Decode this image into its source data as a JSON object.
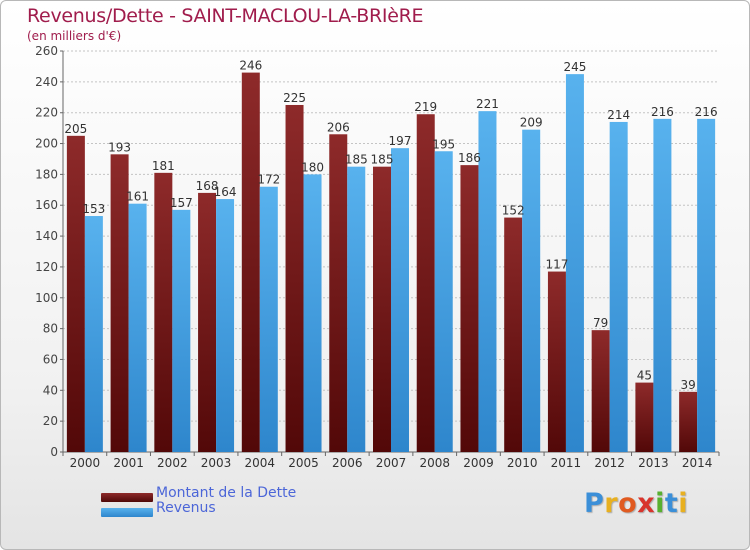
{
  "chart_data": {
    "type": "bar",
    "title": "Revenus/Dette - SAINT-MACLOU-LA-BRIèRE",
    "subtitle": "(en milliers d'€)",
    "categories": [
      "2000",
      "2001",
      "2002",
      "2003",
      "2004",
      "2005",
      "2006",
      "2007",
      "2008",
      "2009",
      "2010",
      "2011",
      "2012",
      "2013",
      "2014"
    ],
    "series": [
      {
        "name": "Montant de la Dette",
        "color": "#6e1414",
        "values": [
          205,
          193,
          181,
          168,
          246,
          225,
          206,
          185,
          219,
          186,
          152,
          117,
          79,
          45,
          39
        ]
      },
      {
        "name": "Revenus",
        "color": "#3f9ee0",
        "values": [
          153,
          161,
          157,
          164,
          172,
          180,
          185,
          197,
          195,
          221,
          209,
          245,
          214,
          216,
          216
        ]
      }
    ],
    "yticks": [
      0,
      20,
      40,
      60,
      80,
      100,
      120,
      140,
      160,
      180,
      200,
      220,
      240,
      260
    ],
    "ylim": [
      0,
      260
    ],
    "grid": true,
    "xlabel": "",
    "ylabel": "",
    "legend_position": "bottom-left"
  },
  "legend": {
    "dette_label": "Montant de la Dette",
    "revenus_label": "Revenus"
  },
  "logo": {
    "letters": [
      "P",
      "r",
      "o",
      "x",
      "i",
      "t",
      "i"
    ],
    "colors": [
      "#3b8fd8",
      "#e8b020",
      "#e05a20",
      "#d8342c",
      "#58b030",
      "#3b8fd8",
      "#e8b020"
    ]
  }
}
